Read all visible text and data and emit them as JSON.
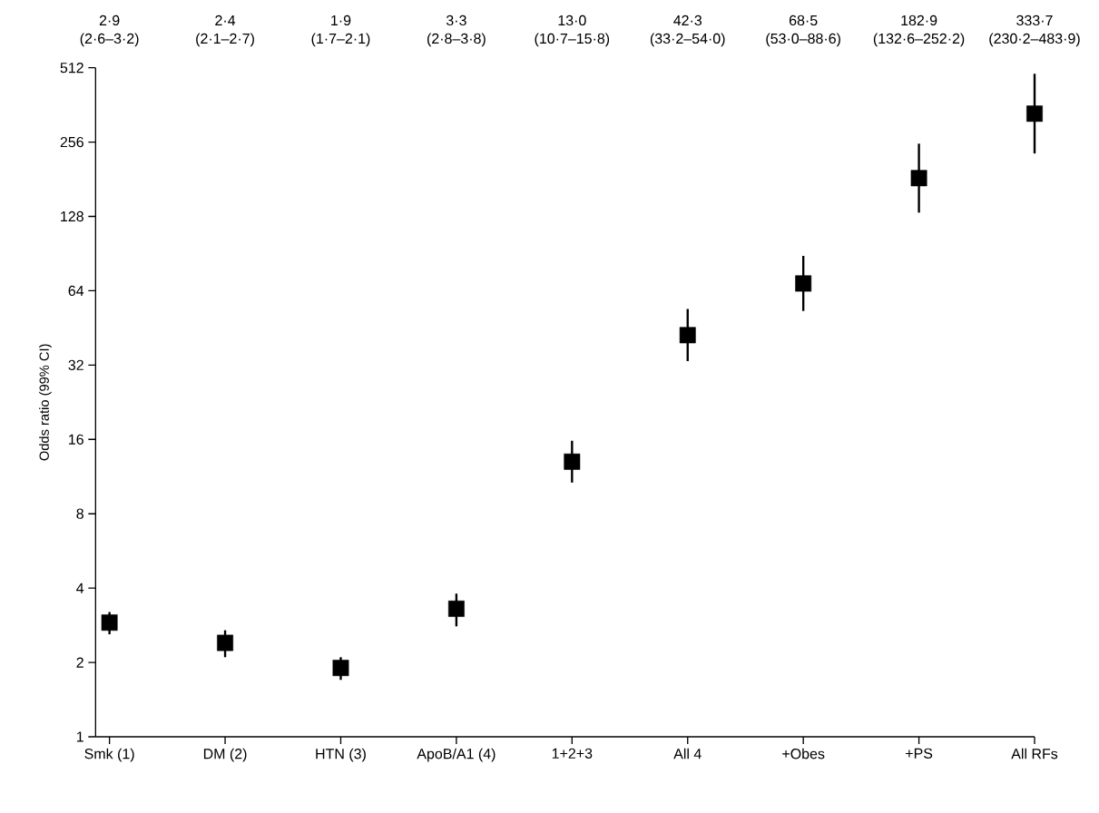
{
  "chart_data": {
    "type": "scatter",
    "ylabel": "Odds ratio (99% CI)",
    "categories": [
      "Smk (1)",
      "DM (2)",
      "HTN (3)",
      "ApoB/A1 (4)",
      "1+2+3",
      "All 4",
      "+Obes",
      "+PS",
      "All RFs"
    ],
    "values": [
      2.9,
      2.4,
      1.9,
      3.3,
      13.0,
      42.3,
      68.5,
      182.9,
      333.7
    ],
    "errors": [
      [
        2.6,
        3.2
      ],
      [
        2.1,
        2.7
      ],
      [
        1.7,
        2.1
      ],
      [
        2.8,
        3.8
      ],
      [
        10.7,
        15.8
      ],
      [
        33.2,
        54.0
      ],
      [
        53.0,
        88.6
      ],
      [
        132.6,
        252.2
      ],
      [
        230.2,
        483.9
      ]
    ],
    "value_labels": [
      "2·9 (2·6–3·2)",
      "2·4 (2·1–2·7)",
      "1·9 (1·7–2·1)",
      "3·3 (2·8–3·8)",
      "13·0 (10·7–15·8)",
      "42·3 (33·2–54·0)",
      "68·5 (53·0–88·6)",
      "182·9 (132·6–252·2)",
      "333·7 (230·2–483·9)"
    ],
    "color": "#000000",
    "marker": "square",
    "log": true,
    "ylim": [
      1,
      512
    ],
    "yticks": [
      1,
      2,
      4,
      8,
      16,
      32,
      64,
      128,
      256,
      512
    ]
  }
}
